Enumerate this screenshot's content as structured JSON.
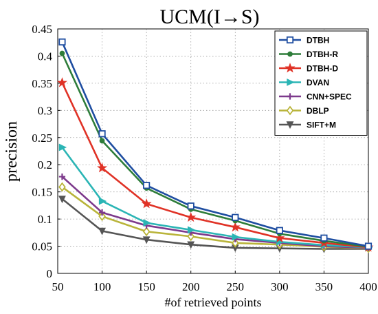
{
  "chart_data": {
    "type": "line",
    "title": "UCM(I→S)",
    "xlabel": "#of retrieved points",
    "ylabel": "precision",
    "xlim": [
      50,
      400
    ],
    "ylim": [
      0,
      0.45
    ],
    "x": [
      55,
      100,
      150,
      200,
      250,
      300,
      350,
      400
    ],
    "xticks": [
      "50",
      "100",
      "150",
      "200",
      "250",
      "300",
      "350",
      "400"
    ],
    "yticks": [
      "0",
      "0.05",
      "0.1",
      "0.15",
      "0.2",
      "0.25",
      "0.3",
      "0.35",
      "0.4",
      "0.45"
    ],
    "grid": true,
    "legend_position": "top-right",
    "series": [
      {
        "name": "DTBH",
        "color": "#1f4ea1",
        "marker": "square",
        "values": [
          0.426,
          0.257,
          0.162,
          0.124,
          0.103,
          0.079,
          0.065,
          0.05
        ]
      },
      {
        "name": "DTBH-R",
        "color": "#2e7d3a",
        "marker": "circle",
        "values": [
          0.405,
          0.244,
          0.157,
          0.118,
          0.097,
          0.073,
          0.06,
          0.049
        ]
      },
      {
        "name": "DTBH-D",
        "color": "#e03226",
        "marker": "star",
        "values": [
          0.351,
          0.194,
          0.128,
          0.103,
          0.085,
          0.065,
          0.056,
          0.048
        ]
      },
      {
        "name": "DVAN",
        "color": "#2bb5b5",
        "marker": "triangle-right",
        "values": [
          0.232,
          0.133,
          0.093,
          0.08,
          0.067,
          0.058,
          0.052,
          0.048
        ]
      },
      {
        "name": "CNN+SPEC",
        "color": "#7d3a8c",
        "marker": "plus",
        "values": [
          0.178,
          0.112,
          0.088,
          0.075,
          0.063,
          0.056,
          0.05,
          0.047
        ]
      },
      {
        "name": "DBLP",
        "color": "#b9b43a",
        "marker": "diamond",
        "values": [
          0.159,
          0.105,
          0.077,
          0.068,
          0.056,
          0.053,
          0.049,
          0.046
        ]
      },
      {
        "name": "SIFT+M",
        "color": "#555555",
        "marker": "triangle-down",
        "values": [
          0.137,
          0.078,
          0.062,
          0.053,
          0.047,
          0.046,
          0.045,
          0.045
        ]
      }
    ]
  }
}
